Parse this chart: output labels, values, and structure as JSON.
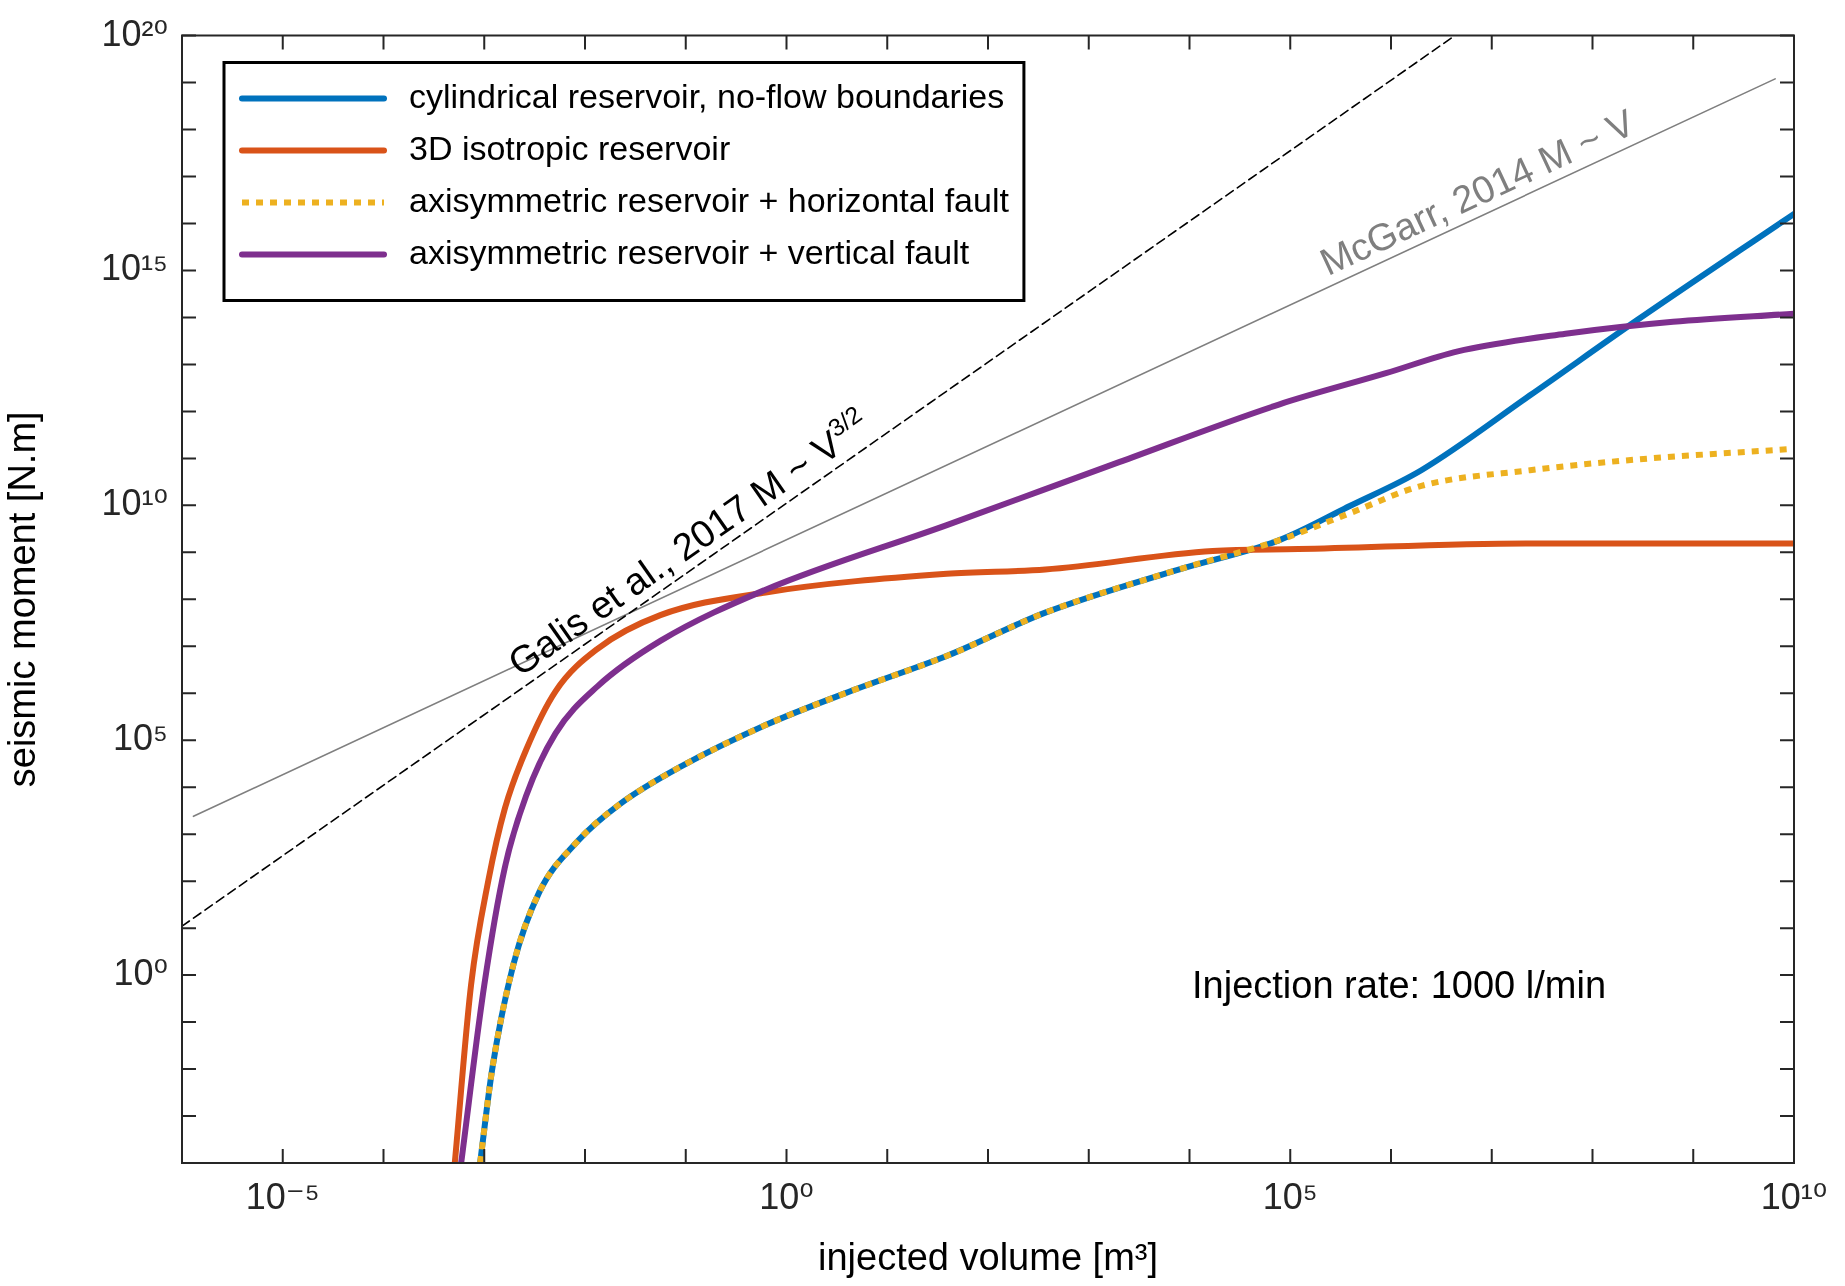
{
  "chart_data": {
    "type": "line",
    "xlabel": "injected volume [m³]",
    "ylabel": "seismic moment [N.m]",
    "log": "xy",
    "grid": false,
    "legend": "top left",
    "xlim": [
      1e-06,
      10000000000.0
    ],
    "ylim": [
      0.0001,
      1e+20
    ],
    "xticks": [
      {
        "value": 1e-05,
        "label": "10⁻⁵"
      },
      {
        "value": 0.0001,
        "label": null
      },
      {
        "value": 0.001,
        "label": null
      },
      {
        "value": 0.01,
        "label": null
      },
      {
        "value": 0.1,
        "label": null
      },
      {
        "value": 1,
        "label": "10⁰"
      },
      {
        "value": 10.0,
        "label": null
      },
      {
        "value": 100.0,
        "label": null
      },
      {
        "value": 1000.0,
        "label": null
      },
      {
        "value": 10000.0,
        "label": null
      },
      {
        "value": 100000.0,
        "label": "10⁵"
      },
      {
        "value": 1000000.0,
        "label": null
      },
      {
        "value": 10000000.0,
        "label": null
      },
      {
        "value": 100000000.0,
        "label": null
      },
      {
        "value": 1000000000.0,
        "label": null
      },
      {
        "value": 10000000000.0,
        "label": "10¹⁰"
      }
    ],
    "yticks": [
      {
        "value": 0.001,
        "label": null
      },
      {
        "value": 0.01,
        "label": null
      },
      {
        "value": 0.1,
        "label": null
      },
      {
        "value": 1,
        "label": "10⁰"
      },
      {
        "value": 10.0,
        "label": null
      },
      {
        "value": 100.0,
        "label": null
      },
      {
        "value": 1000.0,
        "label": null
      },
      {
        "value": 10000.0,
        "label": null
      },
      {
        "value": 100000.0,
        "label": "10⁵"
      },
      {
        "value": 1000000.0,
        "label": null
      },
      {
        "value": 10000000.0,
        "label": null
      },
      {
        "value": 100000000.0,
        "label": null
      },
      {
        "value": 1000000000.0,
        "label": null
      },
      {
        "value": 10000000000.0,
        "label": "10¹⁰"
      },
      {
        "value": 100000000000.0,
        "label": null
      },
      {
        "value": 1000000000000.0,
        "label": null
      },
      {
        "value": 10000000000000.0,
        "label": null
      },
      {
        "value": 100000000000000.0,
        "label": null
      },
      {
        "value": 1000000000000000.0,
        "label": "10¹⁵"
      },
      {
        "value": 1e+16,
        "label": null
      },
      {
        "value": 1e+17,
        "label": null
      },
      {
        "value": 1e+18,
        "label": null
      },
      {
        "value": 1e+19,
        "label": null
      },
      {
        "value": 1e+20,
        "label": "10²⁰"
      }
    ],
    "annotations": [
      "Injection rate: 1000 l/min"
    ],
    "series": [
      {
        "name": "cylindrical reservoir, no-flow boundaries",
        "color": "#0072bd",
        "line_style": "solid",
        "x": [
          0.00091,
          0.0012,
          0.00195,
          0.0035,
          0.0083,
          0.022,
          0.091,
          0.62,
          4.3,
          41,
          370,
          7800.0,
          77000.0,
          390000.0,
          2000000.0,
          24000000.0,
          280000000.0,
          10000000000.0
        ],
        "values": [
          0.0001,
          0.01,
          1.7,
          57,
          680,
          4300.0,
          28000.0,
          210000.0,
          1100000.0,
          6500000.0,
          52000000.0,
          430000000.0,
          1800000000.0,
          9700000000.0,
          56000000000.0,
          2200000000000.0,
          89000000000000.0,
          1.6e+16
        ]
      },
      {
        "name": "3D isotropic reservoir",
        "color": "#d95319",
        "line_style": "solid",
        "x": [
          0.00051,
          0.00074,
          0.0011,
          0.0016,
          0.0026,
          0.0051,
          0.0133,
          0.056,
          0.62,
          39,
          370,
          17000.0,
          120000.0,
          24000000.0,
          10000000000.0
        ],
        "values": [
          0.0001,
          0.62,
          105,
          3500.0,
          62000.0,
          1100000.0,
          8800000.0,
          46000000.0,
          140000000.0,
          350000000.0,
          430000000.0,
          1070000000.0,
          1170000000.0,
          1550000000.0,
          1550000000.0
        ]
      },
      {
        "name": "axisymmetric reservoir + horizontal fault",
        "color": "#edb120",
        "line_style": "dotted",
        "x": [
          0.00091,
          0.0012,
          0.00195,
          0.0035,
          0.0083,
          0.022,
          0.091,
          0.62,
          4.3,
          41,
          370,
          7800.0,
          77000.0,
          390000.0,
          2000000.0,
          24000000.0,
          280000000.0,
          10000000000.0
        ],
        "values": [
          0.0001,
          0.01,
          1.7,
          57,
          680,
          4300.0,
          28000.0,
          210000.0,
          1100000.0,
          6500000.0,
          52000000.0,
          430000000.0,
          1800000000.0,
          6800000000.0,
          26000000000.0,
          56000000000.0,
          95000000000.0,
          160000000000.0
        ]
      },
      {
        "name": "axisymmetric reservoir + vertical fault",
        "color": "#7e2f8e",
        "line_style": "solid",
        "x": [
          0.00059,
          0.001,
          0.0016,
          0.0026,
          0.0051,
          0.0133,
          0.056,
          0.62,
          39,
          2000.0,
          77000.0,
          890000.0,
          4600000.0,
          54000000.0,
          630000000.0,
          10000000000.0
        ],
        "values": [
          0.0001,
          0.61,
          195,
          6500.0,
          140000.0,
          1400000.0,
          13000000.0,
          160000000.0,
          3800000000.0,
          83000000000.0,
          1400000000000.0,
          6500000000000.0,
          19000000000000.0,
          45000000000000.0,
          81000000000000.0,
          120000000000000.0
        ]
      },
      {
        "name": "McGarr, 2014 M ~ V",
        "type": "line",
        "color": "#7f7f7f",
        "line_style": "solid",
        "x": [
          1.3e-06,
          6500000000.0
        ],
        "values": [
          2400.0,
          1.2e+19
        ]
      },
      {
        "name": "Galis et al., 2017 M ~ V$^{3/2}$",
        "type": "line",
        "color": "#000000",
        "line_style": "dashed",
        "x": [
          1e-06,
          4300000.0
        ],
        "values": [
          11,
          1e+20
        ]
      }
    ]
  }
}
